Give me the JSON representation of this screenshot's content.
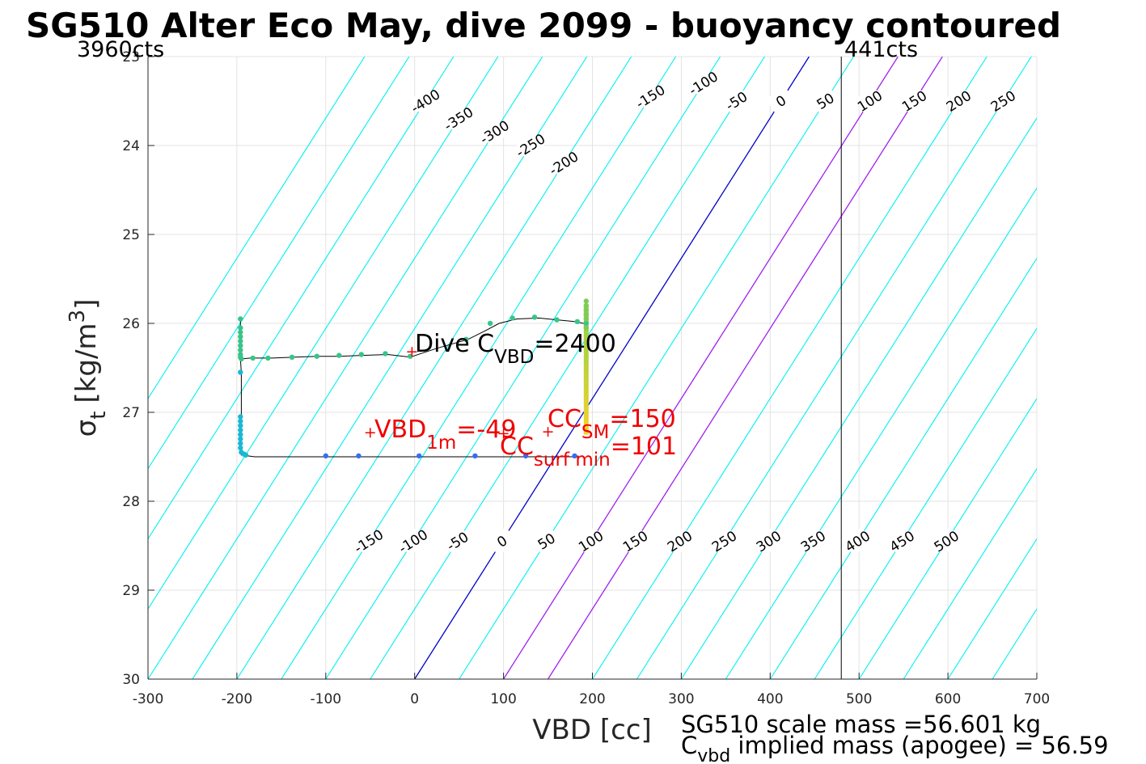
{
  "chart_data": {
    "type": "scatter",
    "title": "SG510 Alter Eco May, dive 2099 - buoyancy contoured",
    "xlabel": "VBD [cc]",
    "ylabel_symbol": "σ",
    "ylabel_sub": "t",
    "ylabel_unit": "[kg/m",
    "ylabel_sup": "3",
    "ylabel_close": "]",
    "xlim": [
      -300,
      700
    ],
    "ylim": [
      23,
      30
    ],
    "y_reversed": true,
    "grid": true,
    "x_ticks": [
      -300,
      -200,
      -100,
      0,
      100,
      200,
      300,
      400,
      500,
      600,
      700
    ],
    "y_ticks": [
      23,
      24,
      25,
      26,
      27,
      28,
      29,
      30
    ],
    "x_tick_labels": [
      "-300",
      "-200",
      "-100",
      "0",
      "100",
      "200",
      "300",
      "400",
      "500",
      "600",
      "700"
    ],
    "y_tick_labels": [
      "23",
      "24",
      "25",
      "26",
      "27",
      "28",
      "29",
      "30"
    ],
    "limit_labels": {
      "left": "3960cts",
      "right": "441cts"
    },
    "vbd_limit_right": 480,
    "vbd_limit_left": -300,
    "contour_levels": [
      -500,
      -450,
      -400,
      -350,
      -300,
      -250,
      -200,
      -150,
      -100,
      -50,
      0,
      50,
      100,
      150,
      200,
      250,
      300,
      350,
      400,
      450,
      500,
      550,
      600,
      650,
      700,
      750,
      800,
      850,
      900
    ],
    "contour_slope_vbd_per_sigma": 63.4,
    "contour_colors": {
      "default": "#00f0f0",
      "zero": "#0000c8",
      "cc_bounds": "#a020f0"
    },
    "highlight_levels": {
      "zero": 0,
      "cc": [
        100,
        150
      ]
    },
    "contour_labels_top": [
      "-400",
      "-350",
      "-300",
      "-250",
      "-200",
      "-150",
      "-100",
      "-50",
      "0",
      "50",
      "100",
      "150",
      "200",
      "250",
      "300",
      "350",
      "400",
      "450",
      "500"
    ],
    "contour_labels_bottom": [
      "-150",
      "-100",
      "-50",
      "0",
      "50",
      "100",
      "150",
      "200",
      "250",
      "300",
      "350",
      "400",
      "450",
      "500"
    ],
    "profile_line": [
      [
        195,
        26.0
      ],
      [
        190,
        26.0
      ],
      [
        180,
        25.98
      ],
      [
        160,
        25.96
      ],
      [
        140,
        25.94
      ],
      [
        115,
        25.95
      ],
      [
        95,
        26.0
      ],
      [
        80,
        26.08
      ],
      [
        60,
        26.18
      ],
      [
        25,
        26.28
      ],
      [
        -5,
        26.38
      ],
      [
        -30,
        26.35
      ],
      [
        -60,
        26.36
      ],
      [
        -85,
        26.37
      ],
      [
        -110,
        26.37
      ],
      [
        -135,
        26.38
      ],
      [
        -160,
        26.39
      ],
      [
        -185,
        26.39
      ],
      [
        -195,
        26.4
      ],
      [
        -196,
        26.3
      ],
      [
        -196,
        26.1
      ],
      [
        -196,
        25.95
      ],
      [
        -196,
        26.1
      ],
      [
        -196,
        26.4
      ],
      [
        -195,
        26.55
      ],
      [
        -195,
        27.48
      ],
      [
        -180,
        27.5
      ],
      [
        -100,
        27.5
      ],
      [
        -60,
        27.5
      ],
      [
        5,
        27.5
      ],
      [
        70,
        27.5
      ],
      [
        125,
        27.5
      ],
      [
        185,
        27.5
      ]
    ],
    "points_upper": [
      [
        -196,
        25.95
      ],
      [
        -196,
        26.05
      ],
      [
        -196,
        26.1
      ],
      [
        -196,
        26.15
      ],
      [
        -196,
        26.2
      ],
      [
        -196,
        26.25
      ],
      [
        -196,
        26.3
      ],
      [
        -196,
        26.35
      ],
      [
        -196,
        26.38
      ],
      [
        -195,
        26.4
      ],
      [
        -182,
        26.39
      ],
      [
        -165,
        26.39
      ],
      [
        -138,
        26.38
      ],
      [
        -110,
        26.37
      ],
      [
        -85,
        26.36
      ],
      [
        -60,
        26.35
      ],
      [
        -33,
        26.34
      ],
      [
        -5,
        26.37
      ],
      [
        58,
        26.18
      ],
      [
        85,
        26.0
      ],
      [
        110,
        25.94
      ],
      [
        135,
        25.93
      ],
      [
        160,
        25.96
      ],
      [
        183,
        25.98
      ],
      [
        193,
        26.0
      ]
    ],
    "points_mid": [
      [
        -196,
        26.55
      ],
      [
        -196,
        27.05
      ],
      [
        -196,
        27.1
      ],
      [
        -196,
        27.15
      ],
      [
        -196,
        27.2
      ],
      [
        -196,
        27.25
      ],
      [
        -196,
        27.3
      ],
      [
        -196,
        27.35
      ],
      [
        -196,
        27.4
      ],
      [
        -195,
        27.45
      ],
      [
        -192,
        27.47
      ],
      [
        -190,
        27.48
      ]
    ],
    "points_lower": [
      [
        -100,
        27.49
      ],
      [
        -63,
        27.49
      ],
      [
        5,
        27.49
      ],
      [
        68,
        27.49
      ],
      [
        125,
        27.49
      ],
      [
        180,
        27.49
      ]
    ],
    "points_vertical_green": [
      [
        193,
        25.75
      ],
      [
        193,
        25.8
      ],
      [
        193,
        25.85
      ],
      [
        193,
        25.9
      ],
      [
        193,
        25.95
      ],
      [
        193,
        26.05
      ]
    ],
    "vertical_bar": {
      "x": 193,
      "y_top": 25.8,
      "y_bottom": 27.25,
      "color_top": "#8cd148",
      "color_bottom": "#f5d22a"
    },
    "point_colors": {
      "upper": "#38c48a",
      "mid": "#1ab8d4",
      "lower": "#3a6cf0",
      "green": "#7dcc55"
    },
    "markers": [
      {
        "name": "dive",
        "x": -3,
        "y": 26.32
      },
      {
        "name": "vbd_1m",
        "x": -50,
        "y": 27.23
      },
      {
        "name": "cc_sm",
        "x": 150,
        "y": 27.22
      },
      {
        "name": "cc_surf",
        "x": 100,
        "y": 27.24
      }
    ],
    "annotations": {
      "dive_main": "Dive C",
      "dive_sub": "VBD",
      "dive_value": "=2400",
      "vbd_main": "VBD",
      "vbd_sub": "1m",
      "vbd_value": "=-49",
      "cc_sm_main": "CC",
      "cc_sm_sub": "SM",
      "cc_sm_value": "=150",
      "cc_surf_main": "CC",
      "cc_surf_sub": "surf min",
      "cc_surf_value": "=101"
    },
    "mass_text_line1": "SG510 scale mass =56.601 kg",
    "mass_text_line2_main": "C",
    "mass_text_line2_sub": "vbd",
    "mass_text_line2_rest": " implied mass (apogee) = 56.59"
  }
}
